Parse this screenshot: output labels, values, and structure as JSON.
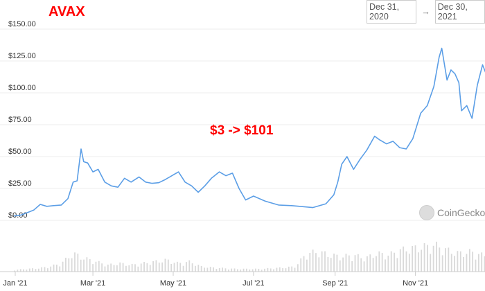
{
  "title": "AVAX",
  "annotation": "$3 -> $101",
  "range": {
    "from": "Dec 31, 2020",
    "arrow": "→",
    "to": "Dec 30, 2021"
  },
  "brand": "CoinGecko",
  "colors": {
    "line": "#5b9ee6",
    "volume": "#d9d9d9",
    "grid": "#ececec",
    "accent": "#ff0000"
  },
  "chart_data": {
    "type": "line",
    "title": "AVAX",
    "ylim": [
      0,
      150
    ],
    "yticks": [
      "$0.00",
      "$25.00",
      "$50.00",
      "$75.00",
      "$100.00",
      "$125.00",
      "$150.00"
    ],
    "ytick_values": [
      0,
      25,
      50,
      75,
      100,
      125,
      150
    ],
    "xticks": [
      "Jan '21",
      "Mar '21",
      "May '21",
      "Jul '21",
      "Sep '21",
      "Nov '21"
    ],
    "xtick_dates": [
      "2021-01-01",
      "2021-03-01",
      "2021-05-01",
      "2021-07-01",
      "2021-09-01",
      "2021-11-01"
    ],
    "xlim": [
      "2020-12-31",
      "2021-12-30"
    ],
    "grid": true,
    "series": [
      {
        "values": [
          [
            "2020-12-31",
            3.4
          ],
          [
            "2021-01-05",
            4
          ],
          [
            "2021-01-10",
            6
          ],
          [
            "2021-01-15",
            8
          ],
          [
            "2021-01-20",
            12.5
          ],
          [
            "2021-01-25",
            11
          ],
          [
            "2021-01-30",
            11.5
          ],
          [
            "2021-02-05",
            12
          ],
          [
            "2021-02-10",
            17
          ],
          [
            "2021-02-14",
            30
          ],
          [
            "2021-02-17",
            31
          ],
          [
            "2021-02-20",
            56
          ],
          [
            "2021-02-22",
            46
          ],
          [
            "2021-02-25",
            45
          ],
          [
            "2021-03-01",
            38
          ],
          [
            "2021-03-05",
            40
          ],
          [
            "2021-03-10",
            30
          ],
          [
            "2021-03-15",
            27
          ],
          [
            "2021-03-20",
            26
          ],
          [
            "2021-03-25",
            33
          ],
          [
            "2021-03-30",
            30
          ],
          [
            "2021-04-05",
            34
          ],
          [
            "2021-04-10",
            30
          ],
          [
            "2021-04-15",
            29
          ],
          [
            "2021-04-20",
            29.5
          ],
          [
            "2021-04-25",
            32
          ],
          [
            "2021-04-30",
            35
          ],
          [
            "2021-05-05",
            38
          ],
          [
            "2021-05-10",
            30
          ],
          [
            "2021-05-15",
            27
          ],
          [
            "2021-05-20",
            22
          ],
          [
            "2021-05-25",
            27
          ],
          [
            "2021-05-30",
            33
          ],
          [
            "2021-06-05",
            38
          ],
          [
            "2021-06-10",
            35
          ],
          [
            "2021-06-15",
            37
          ],
          [
            "2021-06-20",
            25
          ],
          [
            "2021-06-25",
            16
          ],
          [
            "2021-07-01",
            19
          ],
          [
            "2021-07-10",
            15
          ],
          [
            "2021-07-20",
            12
          ],
          [
            "2021-07-30",
            11.5
          ],
          [
            "2021-08-05",
            11
          ],
          [
            "2021-08-15",
            10
          ],
          [
            "2021-08-25",
            13
          ],
          [
            "2021-08-31",
            20
          ],
          [
            "2021-09-03",
            30
          ],
          [
            "2021-09-06",
            44
          ],
          [
            "2021-09-10",
            50
          ],
          [
            "2021-09-15",
            40
          ],
          [
            "2021-09-20",
            48
          ],
          [
            "2021-09-25",
            55
          ],
          [
            "2021-10-01",
            66
          ],
          [
            "2021-10-05",
            63
          ],
          [
            "2021-10-10",
            60
          ],
          [
            "2021-10-15",
            62
          ],
          [
            "2021-10-20",
            57
          ],
          [
            "2021-10-25",
            56
          ],
          [
            "2021-10-30",
            64
          ],
          [
            "2021-11-05",
            84
          ],
          [
            "2021-11-10",
            90
          ],
          [
            "2021-11-15",
            105
          ],
          [
            "2021-11-19",
            128
          ],
          [
            "2021-11-21",
            135
          ],
          [
            "2021-11-25",
            110
          ],
          [
            "2021-11-28",
            118
          ],
          [
            "2021-12-01",
            115
          ],
          [
            "2021-12-04",
            108
          ],
          [
            "2021-12-06",
            86
          ],
          [
            "2021-12-10",
            90
          ],
          [
            "2021-12-14",
            80
          ],
          [
            "2021-12-18",
            106
          ],
          [
            "2021-12-22",
            122
          ],
          [
            "2021-12-25",
            114
          ],
          [
            "2021-12-28",
            110
          ],
          [
            "2021-12-30",
            101
          ]
        ]
      }
    ],
    "volume_relative": [
      0.05,
      0.08,
      0.1,
      0.15,
      0.25,
      0.55,
      0.4,
      0.3,
      0.2,
      0.25,
      0.2,
      0.25,
      0.3,
      0.35,
      0.25,
      0.3,
      0.15,
      0.12,
      0.1,
      0.08,
      0.08,
      0.08,
      0.1,
      0.12,
      0.15,
      0.55,
      0.6,
      0.5,
      0.45,
      0.5,
      0.4,
      0.55,
      0.5,
      0.65,
      0.7,
      0.75,
      0.8,
      0.65,
      0.55,
      0.6,
      0.5,
      0.45
    ]
  }
}
